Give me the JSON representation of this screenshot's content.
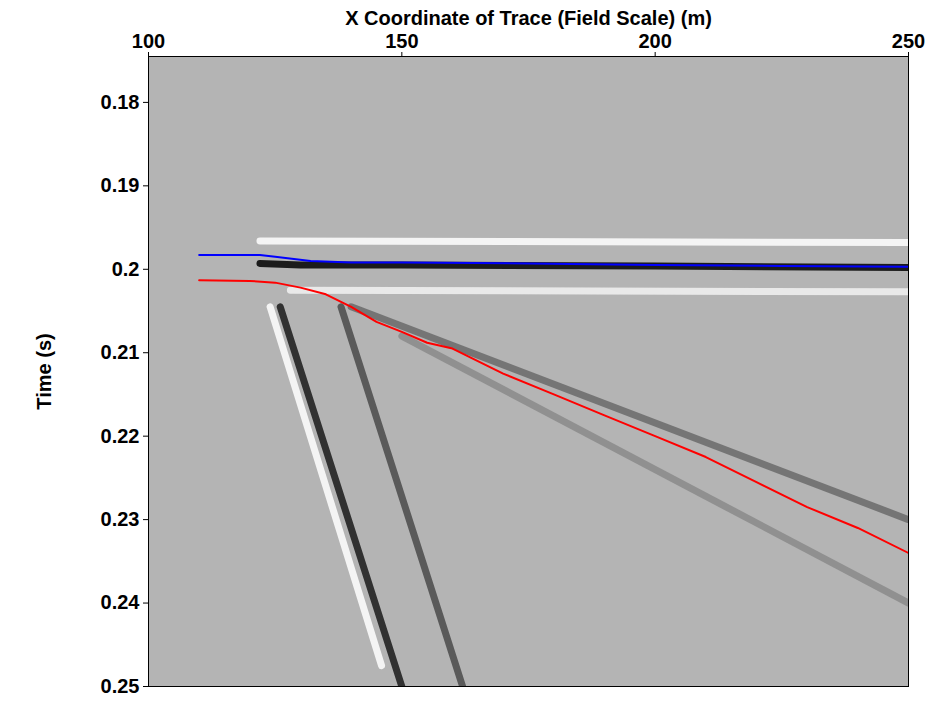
{
  "chart_data": {
    "type": "line",
    "x_label": "X Coordinate of Trace (Field Scale) (m)",
    "y_label": "Time (s)",
    "xlim": [
      100,
      250
    ],
    "xticks": [
      100,
      150,
      200,
      250
    ],
    "ylim": [
      0.1745,
      0.25
    ],
    "yticks": [
      0.18,
      0.19,
      0.2,
      0.21,
      0.22,
      0.23,
      0.24,
      0.25
    ],
    "y_reversed": true,
    "grid": false,
    "series": [
      {
        "color": "#ffffff",
        "line_style": "band",
        "marker": "none",
        "x": [
          122,
          250
        ],
        "values": [
          0.1966,
          0.1968
        ]
      },
      {
        "color": "#f2f2f2",
        "line_style": "band",
        "marker": "none",
        "x": [
          128,
          250
        ],
        "values": [
          0.2025,
          0.2027
        ]
      },
      {
        "color": "#8a8a8a",
        "line_style": "band",
        "marker": "none",
        "x": [
          150,
          250
        ],
        "values": [
          0.208,
          0.24
        ]
      },
      {
        "color": "#6a6a6a",
        "line_style": "band",
        "marker": "none",
        "x": [
          140,
          250
        ],
        "values": [
          0.2045,
          0.23
        ]
      },
      {
        "color": "#ffffff",
        "line_style": "band",
        "marker": "none",
        "x": [
          124,
          146
        ],
        "values": [
          0.2045,
          0.2475
        ]
      },
      {
        "color": "#4a4a4a",
        "line_style": "band",
        "marker": "none",
        "x": [
          138,
          162
        ],
        "values": [
          0.2045,
          0.25
        ]
      },
      {
        "color": "#1a1a1a",
        "line_style": "band",
        "marker": "none",
        "x": [
          126,
          150
        ],
        "values": [
          0.2045,
          0.25
        ]
      },
      {
        "color": "#000000",
        "line_style": "band",
        "marker": "none",
        "x": [
          122,
          130,
          140,
          150,
          200,
          250
        ],
        "values": [
          0.1993,
          0.1995,
          0.1995,
          0.1995,
          0.1996,
          0.1998
        ]
      },
      {
        "color": "#0000ff",
        "line_style": "solid",
        "marker": "none",
        "x": [
          110,
          122,
          125,
          132,
          140,
          150,
          175,
          200,
          225,
          250
        ],
        "values": [
          0.1983,
          0.1983,
          0.1985,
          0.199,
          0.1992,
          0.1992,
          0.1993,
          0.1995,
          0.1996,
          0.1997
        ]
      },
      {
        "color": "#ff0000",
        "line_style": "solid",
        "marker": "none",
        "x": [
          110,
          120,
          125,
          130,
          135,
          140,
          145,
          150,
          155,
          160,
          170,
          180,
          190,
          200,
          210,
          220,
          230,
          240,
          250
        ],
        "values": [
          0.2013,
          0.2014,
          0.2016,
          0.2022,
          0.203,
          0.2045,
          0.2063,
          0.2075,
          0.2088,
          0.2095,
          0.2125,
          0.215,
          0.2175,
          0.22,
          0.2225,
          0.2255,
          0.2285,
          0.231,
          0.234
        ]
      }
    ]
  }
}
